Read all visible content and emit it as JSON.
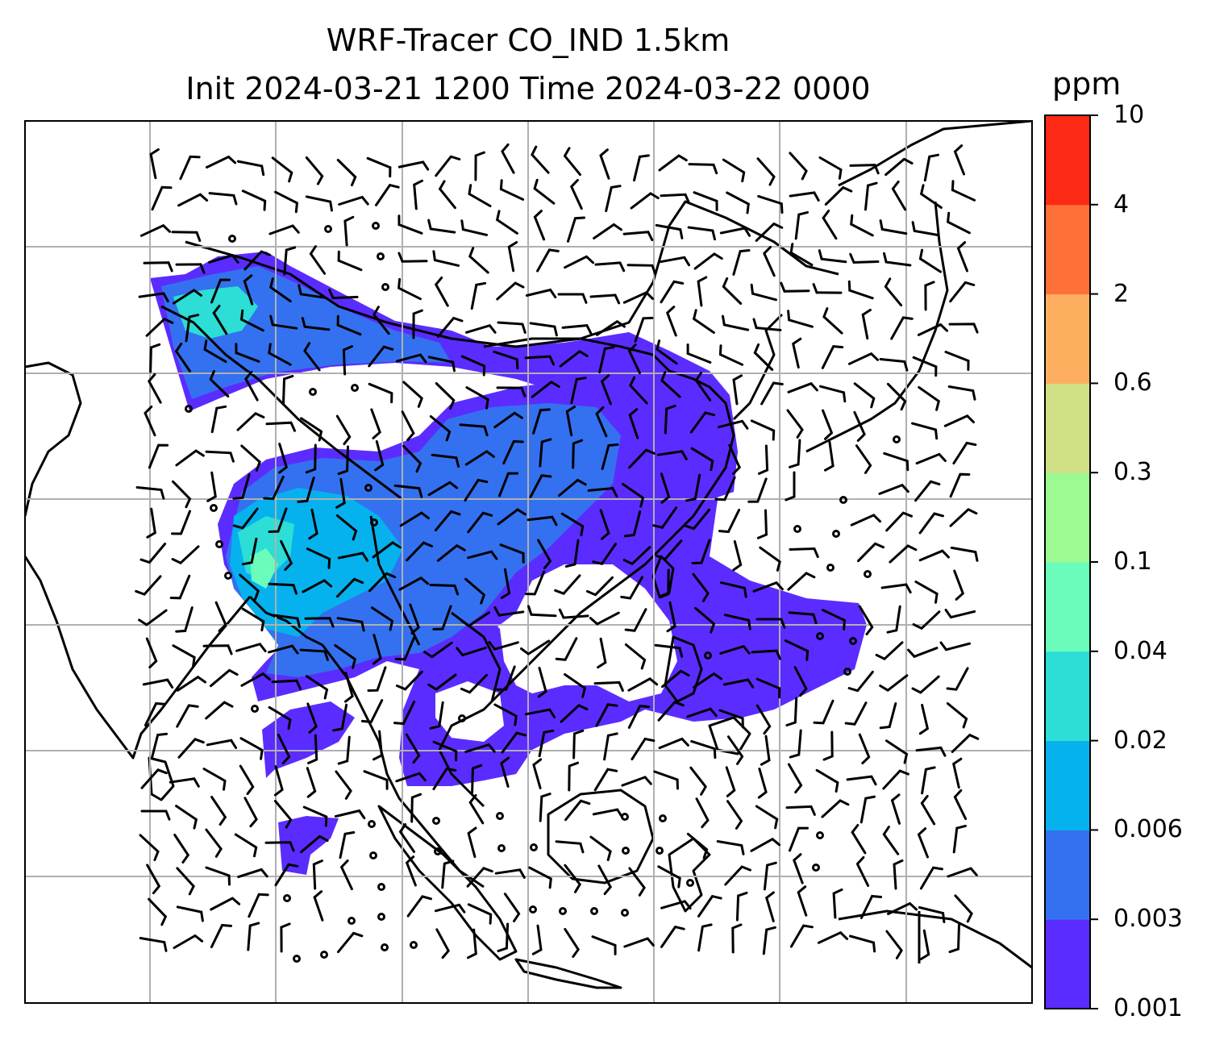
{
  "title_line1": "WRF-Tracer CO_IND 1.5km",
  "title_line2": "Init 2024-03-21 1200 Time 2024-03-22 0000",
  "colorbar": {
    "unit": "ppm",
    "levels": [
      "0.001",
      "0.003",
      "0.006",
      "0.02",
      "0.04",
      "0.1",
      "0.3",
      "0.6",
      "2",
      "4",
      "10"
    ],
    "colors": [
      "#5b2cff",
      "#3471f0",
      "#05b2ee",
      "#2cded5",
      "#6bfcbb",
      "#9df991",
      "#cfe086",
      "#fdaf5f",
      "#fd7138",
      "#fd2a15"
    ]
  },
  "map": {
    "coastline_color": "#000000",
    "grid_color": "#b0b0b0",
    "wind_barb_color": "#000000"
  }
}
